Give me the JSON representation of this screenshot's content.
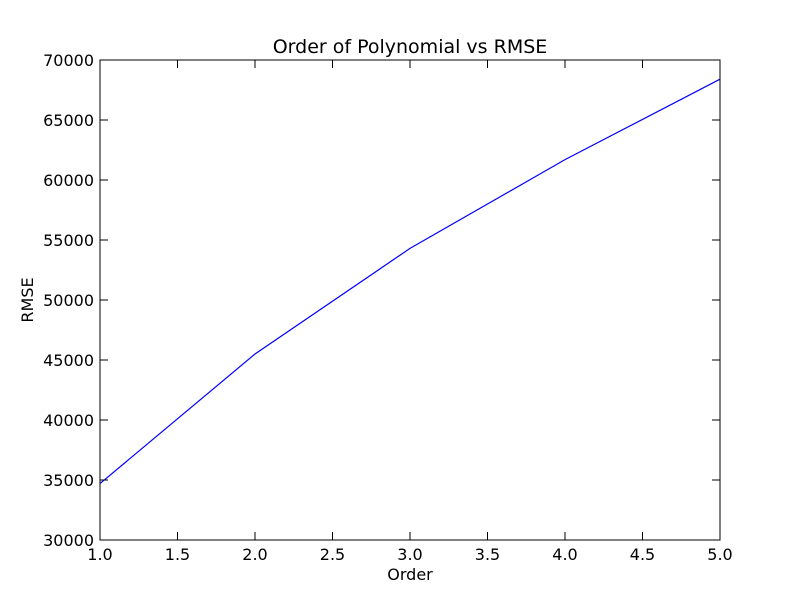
{
  "chart_data": {
    "type": "line",
    "title": "Order of Polynomial vs RMSE",
    "xlabel": "Order",
    "ylabel": "RMSE",
    "xlim": [
      1.0,
      5.0
    ],
    "ylim": [
      30000,
      70000
    ],
    "xticks": [
      "1.0",
      "1.5",
      "2.0",
      "2.5",
      "3.0",
      "3.5",
      "4.0",
      "4.5",
      "5.0"
    ],
    "yticks": [
      "30000",
      "35000",
      "40000",
      "45000",
      "50000",
      "55000",
      "60000",
      "65000",
      "70000"
    ],
    "grid": false,
    "series": [
      {
        "color": "#0000ff",
        "x": [
          1,
          2,
          3,
          4,
          5
        ],
        "y": [
          34700,
          45500,
          54300,
          61700,
          68400
        ]
      }
    ]
  }
}
